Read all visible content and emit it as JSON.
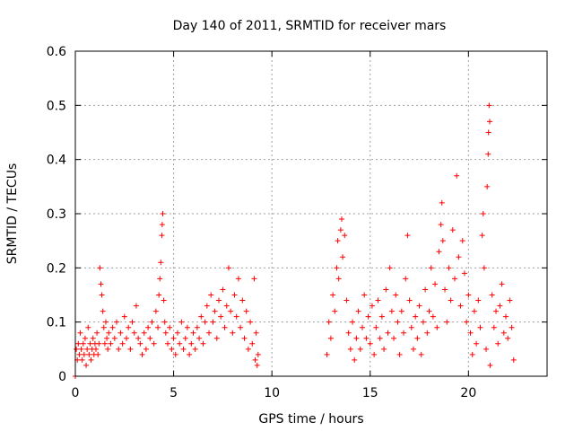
{
  "chart_data": {
    "type": "scatter",
    "title": "Day 140 of 2011, SRMTID for receiver mars",
    "xlabel": "GPS time / hours",
    "ylabel": "SRMTID / TECUs",
    "xlim": [
      0,
      24
    ],
    "ylim": [
      0,
      0.6
    ],
    "x_ticks": [
      0,
      5,
      10,
      15,
      20
    ],
    "x_tick_labels": [
      "0",
      "5",
      "10",
      "15",
      "20"
    ],
    "y_ticks": [
      0,
      0.1,
      0.2,
      0.3,
      0.4,
      0.5,
      0.6
    ],
    "y_tick_labels": [
      "0",
      "0.1",
      "0.2",
      "0.3",
      "0.4",
      "0.5",
      "0.6"
    ],
    "grid": true,
    "legend": "none",
    "series": [
      {
        "name": "SRMTID",
        "marker": "+",
        "color": "#ff0000",
        "points": [
          [
            0.0,
            0.0
          ],
          [
            0.05,
            0.05
          ],
          [
            0.1,
            0.03
          ],
          [
            0.15,
            0.06
          ],
          [
            0.2,
            0.04
          ],
          [
            0.25,
            0.08
          ],
          [
            0.3,
            0.05
          ],
          [
            0.35,
            0.03
          ],
          [
            0.4,
            0.06
          ],
          [
            0.45,
            0.04
          ],
          [
            0.5,
            0.07
          ],
          [
            0.55,
            0.02
          ],
          [
            0.6,
            0.05
          ],
          [
            0.65,
            0.09
          ],
          [
            0.7,
            0.04
          ],
          [
            0.75,
            0.06
          ],
          [
            0.8,
            0.03
          ],
          [
            0.85,
            0.05
          ],
          [
            0.9,
            0.07
          ],
          [
            0.95,
            0.04
          ],
          [
            1.0,
            0.06
          ],
          [
            1.05,
            0.05
          ],
          [
            1.1,
            0.08
          ],
          [
            1.15,
            0.04
          ],
          [
            1.2,
            0.06
          ],
          [
            1.25,
            0.2
          ],
          [
            1.3,
            0.17
          ],
          [
            1.35,
            0.15
          ],
          [
            1.4,
            0.12
          ],
          [
            1.45,
            0.09
          ],
          [
            1.5,
            0.06
          ],
          [
            1.55,
            0.1
          ],
          [
            1.6,
            0.07
          ],
          [
            1.65,
            0.05
          ],
          [
            1.7,
            0.08
          ],
          [
            1.8,
            0.06
          ],
          [
            1.9,
            0.09
          ],
          [
            2.0,
            0.07
          ],
          [
            2.1,
            0.1
          ],
          [
            2.2,
            0.05
          ],
          [
            2.3,
            0.08
          ],
          [
            2.4,
            0.06
          ],
          [
            2.5,
            0.11
          ],
          [
            2.6,
            0.07
          ],
          [
            2.7,
            0.09
          ],
          [
            2.8,
            0.05
          ],
          [
            2.9,
            0.1
          ],
          [
            3.0,
            0.08
          ],
          [
            3.1,
            0.13
          ],
          [
            3.2,
            0.07
          ],
          [
            3.3,
            0.06
          ],
          [
            3.4,
            0.04
          ],
          [
            3.5,
            0.08
          ],
          [
            3.6,
            0.05
          ],
          [
            3.7,
            0.09
          ],
          [
            3.8,
            0.07
          ],
          [
            3.9,
            0.1
          ],
          [
            4.0,
            0.06
          ],
          [
            4.1,
            0.12
          ],
          [
            4.2,
            0.09
          ],
          [
            4.25,
            0.15
          ],
          [
            4.3,
            0.18
          ],
          [
            4.35,
            0.21
          ],
          [
            4.4,
            0.26
          ],
          [
            4.42,
            0.28
          ],
          [
            4.45,
            0.3
          ],
          [
            4.5,
            0.14
          ],
          [
            4.55,
            0.1
          ],
          [
            4.6,
            0.08
          ],
          [
            4.7,
            0.06
          ],
          [
            4.8,
            0.09
          ],
          [
            4.9,
            0.05
          ],
          [
            5.0,
            0.07
          ],
          [
            5.1,
            0.04
          ],
          [
            5.2,
            0.08
          ],
          [
            5.3,
            0.06
          ],
          [
            5.4,
            0.1
          ],
          [
            5.5,
            0.05
          ],
          [
            5.6,
            0.07
          ],
          [
            5.7,
            0.09
          ],
          [
            5.8,
            0.04
          ],
          [
            5.9,
            0.06
          ],
          [
            6.0,
            0.08
          ],
          [
            6.1,
            0.05
          ],
          [
            6.2,
            0.09
          ],
          [
            6.3,
            0.07
          ],
          [
            6.4,
            0.11
          ],
          [
            6.5,
            0.06
          ],
          [
            6.6,
            0.1
          ],
          [
            6.7,
            0.13
          ],
          [
            6.8,
            0.08
          ],
          [
            6.9,
            0.15
          ],
          [
            7.0,
            0.1
          ],
          [
            7.1,
            0.12
          ],
          [
            7.2,
            0.07
          ],
          [
            7.3,
            0.14
          ],
          [
            7.4,
            0.11
          ],
          [
            7.5,
            0.16
          ],
          [
            7.6,
            0.09
          ],
          [
            7.7,
            0.13
          ],
          [
            7.8,
            0.2
          ],
          [
            7.9,
            0.12
          ],
          [
            8.0,
            0.08
          ],
          [
            8.1,
            0.15
          ],
          [
            8.2,
            0.11
          ],
          [
            8.3,
            0.18
          ],
          [
            8.4,
            0.09
          ],
          [
            8.5,
            0.14
          ],
          [
            8.6,
            0.07
          ],
          [
            8.7,
            0.12
          ],
          [
            8.8,
            0.05
          ],
          [
            8.9,
            0.1
          ],
          [
            9.0,
            0.06
          ],
          [
            9.1,
            0.18
          ],
          [
            9.15,
            0.03
          ],
          [
            9.2,
            0.08
          ],
          [
            9.25,
            0.02
          ],
          [
            9.3,
            0.04
          ],
          [
            12.8,
            0.04
          ],
          [
            12.9,
            0.1
          ],
          [
            13.0,
            0.07
          ],
          [
            13.1,
            0.15
          ],
          [
            13.2,
            0.12
          ],
          [
            13.3,
            0.2
          ],
          [
            13.35,
            0.25
          ],
          [
            13.4,
            0.18
          ],
          [
            13.5,
            0.27
          ],
          [
            13.55,
            0.29
          ],
          [
            13.6,
            0.22
          ],
          [
            13.7,
            0.26
          ],
          [
            13.8,
            0.14
          ],
          [
            13.9,
            0.08
          ],
          [
            14.0,
            0.05
          ],
          [
            14.1,
            0.1
          ],
          [
            14.2,
            0.03
          ],
          [
            14.3,
            0.07
          ],
          [
            14.4,
            0.12
          ],
          [
            14.5,
            0.05
          ],
          [
            14.6,
            0.09
          ],
          [
            14.7,
            0.15
          ],
          [
            14.8,
            0.07
          ],
          [
            14.9,
            0.11
          ],
          [
            15.0,
            0.06
          ],
          [
            15.1,
            0.13
          ],
          [
            15.2,
            0.04
          ],
          [
            15.3,
            0.09
          ],
          [
            15.4,
            0.14
          ],
          [
            15.5,
            0.07
          ],
          [
            15.6,
            0.11
          ],
          [
            15.7,
            0.05
          ],
          [
            15.8,
            0.16
          ],
          [
            15.9,
            0.08
          ],
          [
            16.0,
            0.2
          ],
          [
            16.1,
            0.12
          ],
          [
            16.2,
            0.07
          ],
          [
            16.3,
            0.15
          ],
          [
            16.4,
            0.1
          ],
          [
            16.5,
            0.04
          ],
          [
            16.6,
            0.12
          ],
          [
            16.7,
            0.08
          ],
          [
            16.8,
            0.18
          ],
          [
            16.9,
            0.26
          ],
          [
            17.0,
            0.14
          ],
          [
            17.1,
            0.09
          ],
          [
            17.2,
            0.05
          ],
          [
            17.3,
            0.11
          ],
          [
            17.4,
            0.07
          ],
          [
            17.5,
            0.13
          ],
          [
            17.6,
            0.04
          ],
          [
            17.7,
            0.1
          ],
          [
            17.8,
            0.16
          ],
          [
            17.9,
            0.08
          ],
          [
            18.0,
            0.12
          ],
          [
            18.1,
            0.2
          ],
          [
            18.2,
            0.11
          ],
          [
            18.3,
            0.17
          ],
          [
            18.4,
            0.09
          ],
          [
            18.5,
            0.23
          ],
          [
            18.6,
            0.28
          ],
          [
            18.65,
            0.32
          ],
          [
            18.7,
            0.25
          ],
          [
            18.8,
            0.16
          ],
          [
            18.9,
            0.1
          ],
          [
            19.0,
            0.2
          ],
          [
            19.1,
            0.14
          ],
          [
            19.2,
            0.27
          ],
          [
            19.3,
            0.18
          ],
          [
            19.4,
            0.37
          ],
          [
            19.5,
            0.22
          ],
          [
            19.6,
            0.13
          ],
          [
            19.7,
            0.25
          ],
          [
            19.8,
            0.19
          ],
          [
            19.9,
            0.1
          ],
          [
            20.0,
            0.15
          ],
          [
            20.1,
            0.08
          ],
          [
            20.2,
            0.04
          ],
          [
            20.3,
            0.12
          ],
          [
            20.4,
            0.06
          ],
          [
            20.5,
            0.14
          ],
          [
            20.6,
            0.09
          ],
          [
            20.7,
            0.26
          ],
          [
            20.75,
            0.3
          ],
          [
            20.8,
            0.2
          ],
          [
            20.9,
            0.05
          ],
          [
            20.95,
            0.35
          ],
          [
            21.0,
            0.41
          ],
          [
            21.02,
            0.45
          ],
          [
            21.05,
            0.5
          ],
          [
            21.08,
            0.47
          ],
          [
            21.1,
            0.02
          ],
          [
            21.2,
            0.15
          ],
          [
            21.3,
            0.09
          ],
          [
            21.4,
            0.12
          ],
          [
            21.5,
            0.06
          ],
          [
            21.6,
            0.13
          ],
          [
            21.7,
            0.17
          ],
          [
            21.8,
            0.08
          ],
          [
            21.9,
            0.11
          ],
          [
            22.0,
            0.07
          ],
          [
            22.1,
            0.14
          ],
          [
            22.2,
            0.09
          ],
          [
            22.3,
            0.03
          ]
        ]
      }
    ]
  }
}
